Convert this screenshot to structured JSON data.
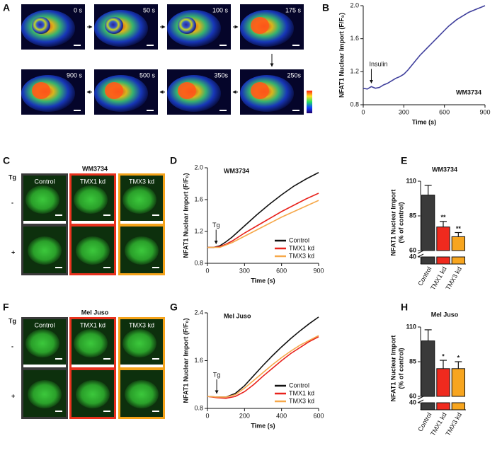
{
  "panel_labels": [
    "A",
    "B",
    "C",
    "D",
    "E",
    "F",
    "G",
    "H"
  ],
  "panel_a": {
    "frames": [
      "0 s",
      "50 s",
      "100 s",
      "175 s",
      "900 s",
      "500 s",
      "350s",
      "250s"
    ]
  },
  "panel_c": {
    "title": "WM3734",
    "row_title": "Tg",
    "rows": [
      "-",
      "+"
    ],
    "columns": [
      "Control",
      "TMX1 kd",
      "TMX3 kd"
    ],
    "column_colors": [
      "#3a3a3a",
      "#e8321e",
      "#f5a31a"
    ]
  },
  "panel_f": {
    "title": "Mel Juso",
    "row_title": "Tg",
    "rows": [
      "-",
      "+"
    ],
    "columns": [
      "Control",
      "TMX1 kd",
      "TMX3 kd"
    ],
    "column_colors": [
      "#3a3a3a",
      "#e8321e",
      "#f5a31a"
    ]
  },
  "chart_data": [
    {
      "type": "line",
      "title": "WM3734",
      "xlabel": "Time (s)",
      "ylabel": "NFAT1 Nuclear Import (F/F₀)",
      "annotation": {
        "text": "Insulin",
        "x": 60
      },
      "x": [
        0,
        30,
        60,
        90,
        120,
        150,
        180,
        210,
        240,
        270,
        300,
        330,
        360,
        390,
        420,
        450,
        480,
        510,
        540,
        570,
        600,
        630,
        660,
        690,
        720,
        750,
        780,
        810,
        840,
        870,
        900
      ],
      "series": [
        {
          "color": "#3f3f9c",
          "values": [
            1.0,
            0.99,
            1.02,
            1.0,
            1.01,
            1.04,
            1.06,
            1.09,
            1.12,
            1.14,
            1.17,
            1.22,
            1.28,
            1.34,
            1.4,
            1.45,
            1.5,
            1.55,
            1.6,
            1.65,
            1.7,
            1.75,
            1.79,
            1.83,
            1.86,
            1.89,
            1.92,
            1.94,
            1.96,
            1.98,
            2.0
          ]
        }
      ],
      "xlim": [
        0,
        900
      ],
      "xticks": [
        0,
        300,
        600,
        900
      ],
      "ylim": [
        0.8,
        2.0
      ],
      "yticks": [
        0.8,
        1.2,
        1.6,
        {
          "value": 2,
          "label": "2.0"
        }
      ]
    },
    {
      "type": "line",
      "title": "WM3734",
      "xlabel": "Time (s)",
      "ylabel": "NFAT1 Nuclear Import (F/F₀)",
      "annotation": {
        "text": "Tg",
        "x": 70
      },
      "legend": "lower right",
      "x": [
        0,
        50,
        100,
        150,
        200,
        300,
        400,
        500,
        600,
        700,
        800,
        900
      ],
      "series": [
        {
          "name": "Control",
          "color": "#111111",
          "values": [
            1.0,
            1.0,
            1.02,
            1.07,
            1.13,
            1.27,
            1.41,
            1.54,
            1.66,
            1.77,
            1.86,
            1.94
          ]
        },
        {
          "name": "TMX1 kd",
          "color": "#e8221c",
          "values": [
            1.0,
            1.0,
            1.01,
            1.04,
            1.08,
            1.18,
            1.27,
            1.36,
            1.45,
            1.53,
            1.61,
            1.68
          ]
        },
        {
          "name": "TMX3 kd",
          "color": "#f6a84a",
          "values": [
            1.0,
            1.0,
            1.0,
            1.03,
            1.06,
            1.14,
            1.22,
            1.3,
            1.38,
            1.45,
            1.52,
            1.59
          ]
        }
      ],
      "xlim": [
        0,
        900
      ],
      "xticks": [
        0,
        300,
        600,
        900
      ],
      "ylim": [
        0.8,
        2.0
      ],
      "yticks": [
        0.8,
        1.2,
        1.6,
        {
          "value": 2,
          "label": "2.0"
        }
      ]
    },
    {
      "type": "bar",
      "title": "WM3734",
      "ylabel": [
        "NFAT1 Nuclear Import",
        "(% of control)"
      ],
      "categories": [
        "Control",
        "TMX1 kd",
        "TMX3 kd"
      ],
      "values": [
        100,
        77,
        70
      ],
      "errors": [
        7,
        4,
        3
      ],
      "significance": [
        null,
        "**",
        "**"
      ],
      "colors": [
        "#3a3a3a",
        "#f02a1e",
        "#f7a51f"
      ],
      "ylim": [
        0,
        110
      ],
      "ybreak": [
        40,
        60
      ],
      "yticks": [
        40,
        60,
        85,
        110
      ]
    },
    {
      "type": "line",
      "title": "Mel Juso",
      "xlabel": "Time (s)",
      "ylabel": "NFAT1 Nuclear Import (F/F₀)",
      "annotation": {
        "text": "Tg",
        "x": 50
      },
      "legend": "lower right",
      "x": [
        0,
        50,
        100,
        150,
        200,
        250,
        300,
        350,
        400,
        450,
        500,
        550,
        600
      ],
      "series": [
        {
          "name": "Control",
          "color": "#111111",
          "values": [
            1.0,
            0.99,
            0.99,
            1.05,
            1.18,
            1.35,
            1.52,
            1.68,
            1.83,
            1.97,
            2.1,
            2.22,
            2.33
          ]
        },
        {
          "name": "TMX1 kd",
          "color": "#e8221c",
          "values": [
            1.0,
            0.98,
            0.97,
            1.0,
            1.08,
            1.2,
            1.34,
            1.47,
            1.6,
            1.72,
            1.82,
            1.92,
            2.0
          ]
        },
        {
          "name": "TMX3 kd",
          "color": "#f6a84a",
          "values": [
            1.0,
            0.99,
            0.99,
            1.03,
            1.14,
            1.27,
            1.4,
            1.53,
            1.65,
            1.76,
            1.86,
            1.94,
            2.02
          ]
        }
      ],
      "xlim": [
        0,
        600
      ],
      "xticks": [
        0,
        200,
        400,
        600
      ],
      "ylim": [
        0.8,
        2.4
      ],
      "yticks": [
        0.8,
        1.6,
        2.4
      ]
    },
    {
      "type": "bar",
      "title": "Mel Juso",
      "ylabel": [
        "NFAT1 Nuclear Import",
        "(% of control)"
      ],
      "categories": [
        "Control",
        "TMX1 kd",
        "TMX3 kd"
      ],
      "values": [
        100,
        80,
        80
      ],
      "errors": [
        8,
        6,
        5
      ],
      "significance": [
        null,
        "*",
        "*"
      ],
      "colors": [
        "#3a3a3a",
        "#f02a1e",
        "#f7a51f"
      ],
      "ylim": [
        0,
        110
      ],
      "ybreak": [
        40,
        60
      ],
      "yticks": [
        40,
        60,
        85,
        110
      ]
    }
  ]
}
